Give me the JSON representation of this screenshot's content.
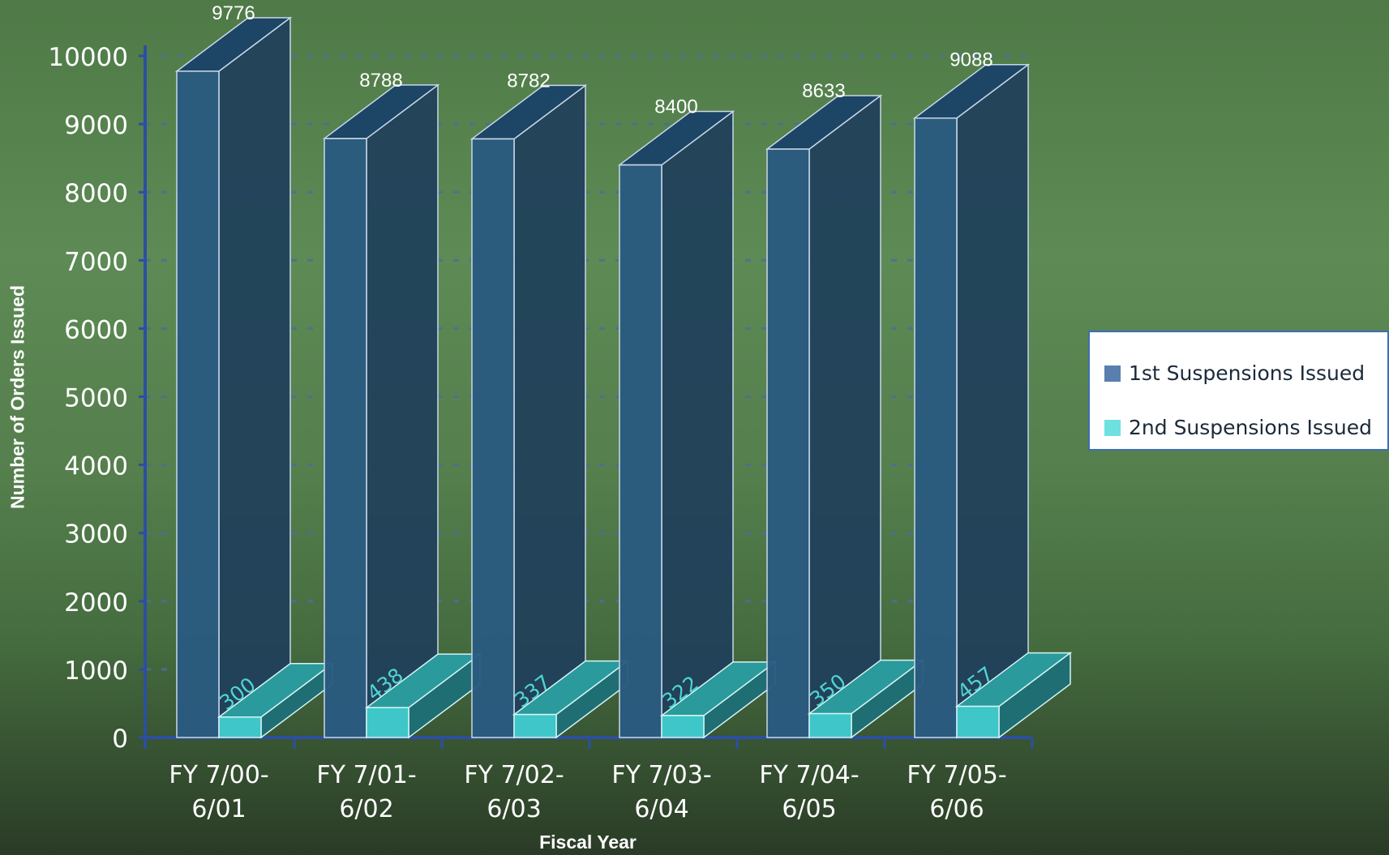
{
  "chart_data": {
    "type": "bar",
    "xlabel": "Fiscal Year",
    "ylabel": "Number of Orders Issued",
    "ylim": [
      0,
      10000
    ],
    "yticks": [
      "0",
      "1000",
      "2000",
      "3000",
      "4000",
      "5000",
      "6000",
      "7000",
      "8000",
      "9000",
      "10000"
    ],
    "grid": true,
    "legend_position": "right",
    "categories": [
      [
        "FY 7/00-",
        "6/01"
      ],
      [
        "FY 7/01-",
        "6/02"
      ],
      [
        "FY 7/02-",
        "6/03"
      ],
      [
        "FY 7/03-",
        "6/04"
      ],
      [
        "FY 7/04-",
        "6/05"
      ],
      [
        "FY 7/05-",
        "6/06"
      ]
    ],
    "series": [
      {
        "name": "1st Suspensions Issued",
        "color": "#2a5b80",
        "values": [
          9776,
          8788,
          8782,
          8400,
          8633,
          9088
        ]
      },
      {
        "name": "2nd Suspensions Issued",
        "color": "#4fd4d4",
        "values": [
          300,
          438,
          337,
          322,
          350,
          457
        ]
      }
    ]
  },
  "legend": {
    "items": [
      {
        "label": "1st Suspensions Issued",
        "color": "#5a7fae"
      },
      {
        "label": "2nd Suspensions Issued",
        "color": "#6fe0e0"
      }
    ]
  }
}
